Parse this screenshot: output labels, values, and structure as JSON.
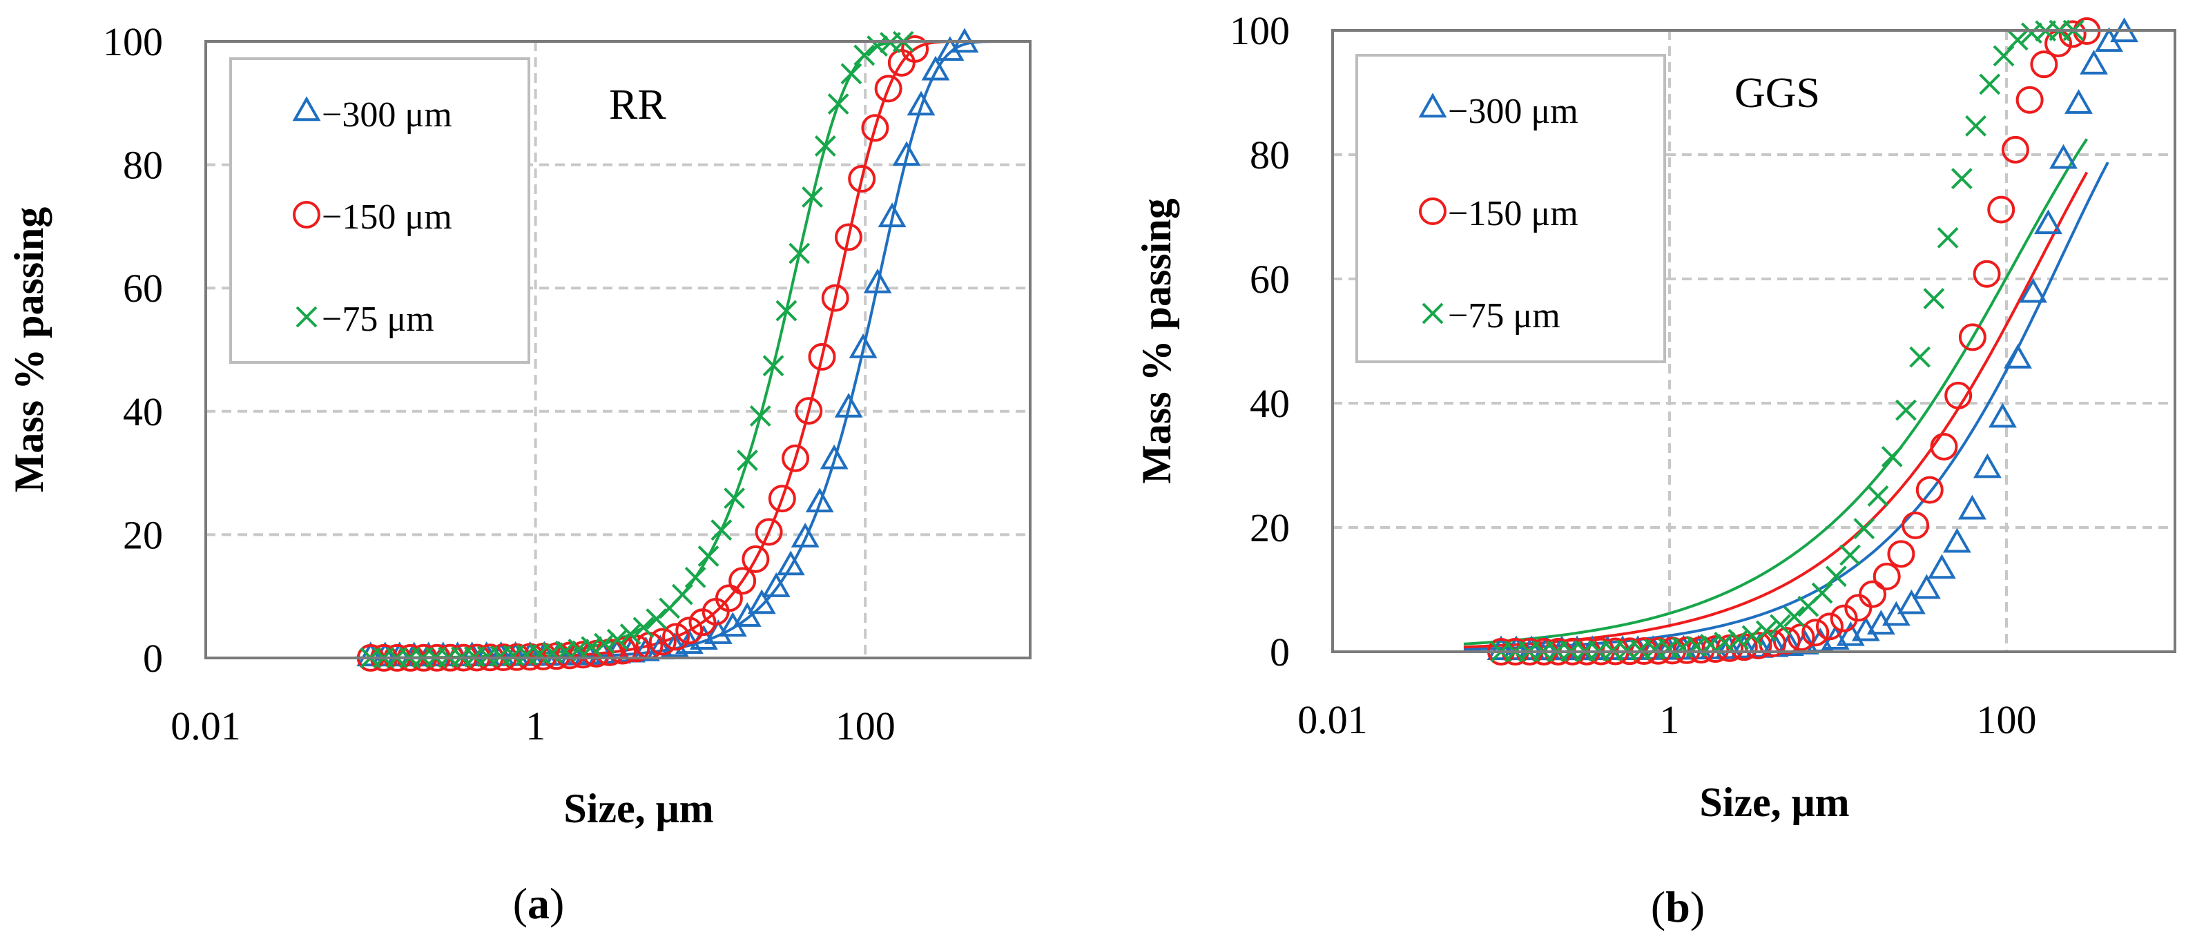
{
  "colors": {
    "s300": "#1f6fc0",
    "s150": "#ee1c1c",
    "s75": "#17a64a",
    "grid": "#c8c8c8",
    "frame": "#7a7a7a"
  },
  "chart_data": [
    {
      "type": "scatter",
      "panel": "(a)",
      "title": "RR",
      "xlabel": "Size, μm",
      "ylabel": "Mass % passing",
      "xscale": "log",
      "xlim": [
        0.01,
        1000
      ],
      "ylim": [
        0,
        100
      ],
      "xticks": [
        0.01,
        1,
        100
      ],
      "xtick_labels": [
        "0.01",
        "1",
        "100"
      ],
      "yticks": [
        0,
        20,
        40,
        60,
        80,
        100
      ],
      "ytick_labels": [
        "0",
        "20",
        "40",
        "60",
        "80",
        "100"
      ],
      "legend": "top-left",
      "series": [
        {
          "name": "−300 μm",
          "marker": "triangle",
          "color": "#1f6fc0",
          "points": {
            "xmin": 0.1,
            "xmax": 400,
            "count": 42,
            "x63": 125,
            "m": 1.45
          },
          "fit": {
            "x63": 125,
            "m": 1.45,
            "xmin": 0.08,
            "xmax": 900
          }
        },
        {
          "name": "−150 μm",
          "marker": "circle",
          "color": "#ee1c1c",
          "points": {
            "xmin": 0.1,
            "xmax": 200,
            "count": 42,
            "x63": 72,
            "m": 1.45
          },
          "fit": {
            "x63": 72,
            "m": 1.45,
            "xmin": 0.08,
            "xmax": 900
          }
        },
        {
          "name": "−75 μm",
          "marker": "cross",
          "color": "#17a64a",
          "points": {
            "xmin": 0.1,
            "xmax": 170,
            "count": 42,
            "x63": 38,
            "m": 1.4
          },
          "fit": {
            "x63": 38,
            "m": 1.4,
            "xmin": 0.08,
            "xmax": 900
          }
        }
      ]
    },
    {
      "type": "scatter",
      "panel": "(b)",
      "title": "GGS",
      "xlabel": "Size, μm",
      "ylabel": "Mass % passing",
      "xscale": "log",
      "xlim": [
        0.01,
        1000
      ],
      "ylim": [
        0,
        100
      ],
      "xticks": [
        0.01,
        1,
        100
      ],
      "xtick_labels": [
        "0.01",
        "1",
        "100"
      ],
      "yticks": [
        0,
        20,
        40,
        60,
        80,
        100
      ],
      "ytick_labels": [
        "0",
        "20",
        "40",
        "60",
        "80",
        "100"
      ],
      "legend": "top-left",
      "series": [
        {
          "name": "−300 μm",
          "marker": "triangle",
          "color": "#1f6fc0",
          "points": {
            "xmin": 0.1,
            "xmax": 500,
            "count": 42,
            "x63": 160,
            "m": 1.45
          },
          "fit": {
            "x63": 210,
            "m": 0.68,
            "xmin": 0.06,
            "xmax": 400
          }
        },
        {
          "name": "−150 μm",
          "marker": "circle",
          "color": "#ee1c1c",
          "points": {
            "xmin": 0.1,
            "xmax": 300,
            "count": 42,
            "x63": 80,
            "m": 1.45
          },
          "fit": {
            "x63": 160,
            "m": 0.62,
            "xmin": 0.06,
            "xmax": 300
          }
        },
        {
          "name": "−75 μm",
          "marker": "cross",
          "color": "#17a64a",
          "points": {
            "xmin": 0.1,
            "xmax": 250,
            "count": 42,
            "x63": 42,
            "m": 1.4
          },
          "fit": {
            "x63": 115,
            "m": 0.58,
            "xmin": 0.06,
            "xmax": 300
          }
        }
      ]
    }
  ]
}
